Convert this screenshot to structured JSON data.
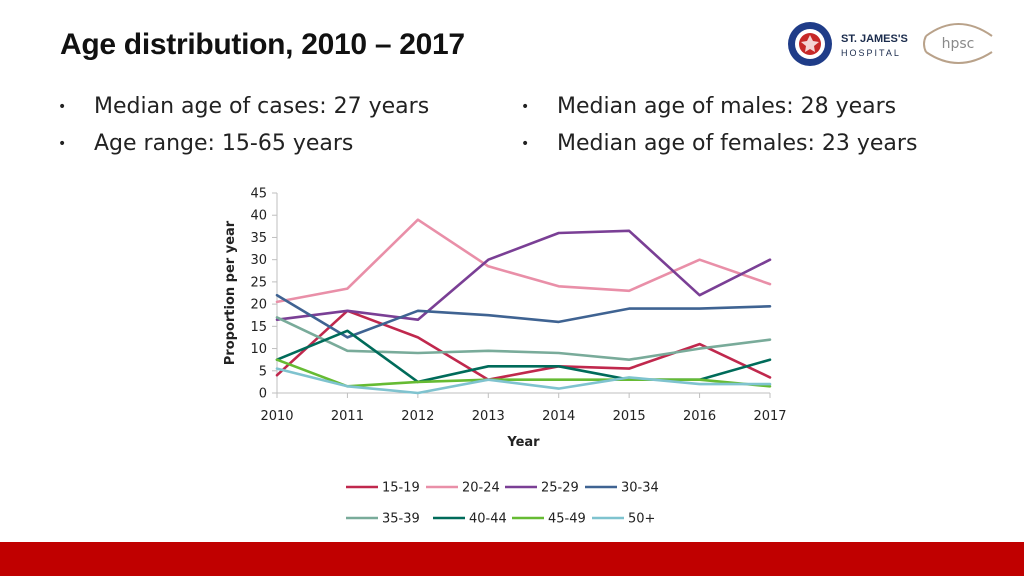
{
  "title": "Age distribution, 2010 – 2017",
  "bullets_left": [
    "Median age of cases: 27 years",
    "Age range: 15-65 years"
  ],
  "bullets_right": [
    "Median age of males: 28 years",
    "Median age of females: 23 years"
  ],
  "logos": {
    "hospital_name_line1": "ST. JAMES'S",
    "hospital_name_line2": "HOSPITAL",
    "hpsc": "hpsc"
  },
  "colors": {
    "footer": "#c00000"
  },
  "chart_data": {
    "type": "line",
    "xlabel": "Year",
    "ylabel": "Proportion per year",
    "ylim": [
      0,
      45
    ],
    "yticks": [
      0,
      5,
      10,
      15,
      20,
      25,
      30,
      35,
      40,
      45
    ],
    "x": [
      2010,
      2011,
      2012,
      2013,
      2014,
      2015,
      2016,
      2017
    ],
    "series": [
      {
        "name": "15-19",
        "color": "#c0284d",
        "values": [
          4,
          18.5,
          12.5,
          3,
          6,
          5.5,
          11,
          3.5
        ]
      },
      {
        "name": "20-24",
        "color": "#e98fa8",
        "values": [
          20.5,
          23.5,
          39,
          28.5,
          24,
          23,
          30,
          24.5
        ]
      },
      {
        "name": "25-29",
        "color": "#7a3f95",
        "values": [
          16.5,
          18.5,
          16.5,
          30,
          36,
          36.5,
          22,
          30
        ]
      },
      {
        "name": "30-34",
        "color": "#3f6392",
        "values": [
          22,
          12.5,
          18.5,
          17.5,
          16,
          19,
          19,
          19.5
        ]
      },
      {
        "name": "35-39",
        "color": "#79ab9a",
        "values": [
          17,
          9.5,
          9,
          9.5,
          9,
          7.5,
          10,
          12
        ]
      },
      {
        "name": "40-44",
        "color": "#006b5a",
        "values": [
          7.5,
          14,
          2.5,
          6,
          6,
          3,
          3,
          7.5
        ]
      },
      {
        "name": "45-49",
        "color": "#66bb33",
        "values": [
          7.5,
          1.5,
          2.5,
          3,
          3,
          3,
          3,
          1.5
        ]
      },
      {
        "name": "50+",
        "color": "#7fc3cf",
        "values": [
          5.5,
          1.5,
          0,
          3,
          1,
          3.5,
          2,
          2
        ]
      }
    ],
    "legend_position": "bottom"
  }
}
